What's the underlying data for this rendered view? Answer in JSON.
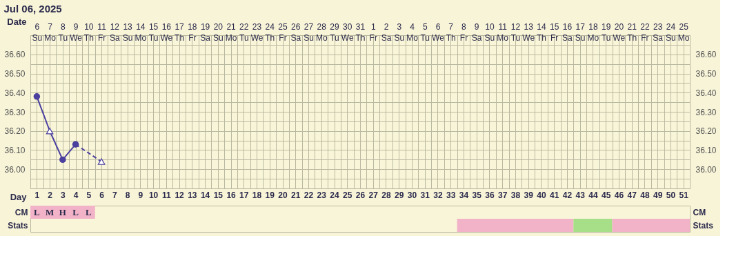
{
  "chart_data": [
    {
      "type": "line",
      "title": "Jul 06, 2025",
      "xlabel": "Day",
      "x2label": "Date",
      "xlim": [
        0.5,
        51.5
      ],
      "xticks": [
        1,
        2,
        3,
        4,
        5,
        6,
        7,
        8,
        9,
        10,
        11,
        12,
        13,
        14,
        15,
        16,
        17,
        18,
        19,
        20,
        21,
        22,
        23,
        24,
        25,
        26,
        27,
        28,
        29,
        30,
        31,
        32,
        33,
        34,
        35,
        36,
        37,
        38,
        39,
        40,
        41,
        42,
        43,
        44,
        45,
        46,
        47,
        48,
        49,
        50,
        51
      ],
      "x2lim": [
        "2025-07-05T12:00",
        "2025-08-25T12:00"
      ],
      "x2ticks": [
        {
          "value": "2025-07-06",
          "label": "6\nSu"
        },
        {
          "value": "2025-07-07",
          "label": "7\nMo"
        },
        {
          "value": "2025-07-08",
          "label": "8\nTu"
        },
        {
          "value": "2025-07-09",
          "label": "9\nWe"
        },
        {
          "value": "2025-07-10",
          "label": "10\nTh"
        },
        {
          "value": "2025-07-11",
          "label": "11\nFr"
        },
        {
          "value": "2025-07-12",
          "label": "12\nSa"
        },
        {
          "value": "2025-07-13",
          "label": "13\nSu"
        },
        {
          "value": "2025-07-14",
          "label": "14\nMo"
        },
        {
          "value": "2025-07-15",
          "label": "15\nTu"
        },
        {
          "value": "2025-07-16",
          "label": "16\nWe"
        },
        {
          "value": "2025-07-17",
          "label": "17\nTh"
        },
        {
          "value": "2025-07-18",
          "label": "18\nFr"
        },
        {
          "value": "2025-07-19",
          "label": "19\nSa"
        },
        {
          "value": "2025-07-20",
          "label": "20\nSu"
        },
        {
          "value": "2025-07-21",
          "label": "21\nMo"
        },
        {
          "value": "2025-07-22",
          "label": "22\nTu"
        },
        {
          "value": "2025-07-23",
          "label": "23\nWe"
        },
        {
          "value": "2025-07-24",
          "label": "24\nTh"
        },
        {
          "value": "2025-07-25",
          "label": "25\nFr"
        },
        {
          "value": "2025-07-26",
          "label": "26\nSa"
        },
        {
          "value": "2025-07-27",
          "label": "27\nSu"
        },
        {
          "value": "2025-07-28",
          "label": "28\nMo"
        },
        {
          "value": "2025-07-29",
          "label": "29\nTu"
        },
        {
          "value": "2025-07-30",
          "label": "30\nWe"
        },
        {
          "value": "2025-07-31",
          "label": "31\nTh"
        },
        {
          "value": "2025-08-01",
          "label": "1\nFr"
        },
        {
          "value": "2025-08-02",
          "label": "2\nSa"
        },
        {
          "value": "2025-08-03",
          "label": "3\nSu"
        },
        {
          "value": "2025-08-04",
          "label": "4\nMo"
        },
        {
          "value": "2025-08-05",
          "label": "5\nTu"
        },
        {
          "value": "2025-08-06",
          "label": "6\nWe"
        },
        {
          "value": "2025-08-07",
          "label": "7\nTh"
        },
        {
          "value": "2025-08-08",
          "label": "8\nFr"
        },
        {
          "value": "2025-08-09",
          "label": "9\nSa"
        },
        {
          "value": "2025-08-10",
          "label": "10\nSu"
        },
        {
          "value": "2025-08-11",
          "label": "11\nMo"
        },
        {
          "value": "2025-08-12",
          "label": "12\nTu"
        },
        {
          "value": "2025-08-13",
          "label": "13\nWe"
        },
        {
          "value": "2025-08-14",
          "label": "14\nTh"
        },
        {
          "value": "2025-08-15",
          "label": "15\nFr"
        },
        {
          "value": "2025-08-16",
          "label": "16\nSa"
        },
        {
          "value": "2025-08-17",
          "label": "17\nSu"
        },
        {
          "value": "2025-08-18",
          "label": "18\nMo"
        },
        {
          "value": "2025-08-19",
          "label": "19\nTu"
        },
        {
          "value": "2025-08-20",
          "label": "20\nWe"
        },
        {
          "value": "2025-08-21",
          "label": "21\nTh"
        },
        {
          "value": "2025-08-22",
          "label": "22\nFr"
        },
        {
          "value": "2025-08-23",
          "label": "23\nSa"
        },
        {
          "value": "2025-08-24",
          "label": "24\nSu"
        },
        {
          "value": "2025-08-25",
          "label": "25\nMo"
        },
        {
          "value": "2025-07-05T12:00",
          "label": null
        },
        {
          "value": "2025-07-06T12:00",
          "label": null
        },
        {
          "value": "2025-07-07T12:00",
          "label": null
        },
        {
          "value": "2025-07-08T12:00",
          "label": null
        },
        {
          "value": "2025-07-09T12:00",
          "label": null
        },
        {
          "value": "2025-07-10T12:00",
          "label": null
        },
        {
          "value": "2025-07-11T12:00",
          "label": null
        },
        {
          "value": "2025-07-12T12:00",
          "label": null
        },
        {
          "value": "2025-07-13T12:00",
          "label": null
        },
        {
          "value": "2025-07-14T12:00",
          "label": null
        },
        {
          "value": "2025-07-15T12:00",
          "label": null
        },
        {
          "value": "2025-07-16T12:00",
          "label": null
        },
        {
          "value": "2025-07-17T12:00",
          "label": null
        },
        {
          "value": "2025-07-18T12:00",
          "label": null
        },
        {
          "value": "2025-07-19T12:00",
          "label": null
        },
        {
          "value": "2025-07-20T12:00",
          "label": null
        },
        {
          "value": "2025-07-21T12:00",
          "label": null
        },
        {
          "value": "2025-07-22T12:00",
          "label": null
        },
        {
          "value": "2025-07-23T12:00",
          "label": null
        },
        {
          "value": "2025-07-24T12:00",
          "label": null
        },
        {
          "value": "2025-07-25T12:00",
          "label": null
        },
        {
          "value": "2025-07-26T12:00",
          "label": null
        },
        {
          "value": "2025-07-27T12:00",
          "label": null
        },
        {
          "value": "2025-07-28T12:00",
          "label": null
        },
        {
          "value": "2025-07-29T12:00",
          "label": null
        },
        {
          "value": "2025-07-30T12:00",
          "label": null
        },
        {
          "value": "2025-07-31T12:00",
          "label": null
        },
        {
          "value": "2025-08-01T12:00",
          "label": null
        },
        {
          "value": "2025-08-02T12:00",
          "label": null
        },
        {
          "value": "2025-08-03T12:00",
          "label": null
        },
        {
          "value": "2025-08-04T12:00",
          "label": null
        },
        {
          "value": "2025-08-05T12:00",
          "label": null
        },
        {
          "value": "2025-08-06T12:00",
          "label": null
        },
        {
          "value": "2025-08-07T12:00",
          "label": null
        },
        {
          "value": "2025-08-08T12:00",
          "label": null
        },
        {
          "value": "2025-08-09T12:00",
          "label": null
        },
        {
          "value": "2025-08-10T12:00",
          "label": null
        },
        {
          "value": "2025-08-11T12:00",
          "label": null
        },
        {
          "value": "2025-08-12T12:00",
          "label": null
        },
        {
          "value": "2025-08-13T12:00",
          "label": null
        },
        {
          "value": "2025-08-14T12:00",
          "label": null
        },
        {
          "value": "2025-08-15T12:00",
          "label": null
        },
        {
          "value": "2025-08-16T12:00",
          "label": null
        },
        {
          "value": "2025-08-17T12:00",
          "label": null
        },
        {
          "value": "2025-08-18T12:00",
          "label": null
        },
        {
          "value": "2025-08-19T12:00",
          "label": null
        },
        {
          "value": "2025-08-20T12:00",
          "label": null
        },
        {
          "value": "2025-08-21T12:00",
          "label": null
        },
        {
          "value": "2025-08-22T12:00",
          "label": null
        },
        {
          "value": "2025-08-23T12:00",
          "label": null
        },
        {
          "value": "2025-08-24T12:00",
          "label": null
        },
        {
          "value": "2025-08-25T12:00",
          "label": null
        }
      ],
      "ylim": [
        35.9,
        36.7
      ],
      "yticks": [
        {
          "value": 35.9,
          "label": null
        },
        {
          "value": 35.95,
          "label": null
        },
        {
          "value": 36.0,
          "label": "36.00"
        },
        {
          "value": 36.05,
          "label": null
        },
        {
          "value": 36.1,
          "label": "36.10"
        },
        {
          "value": 36.15,
          "label": null
        },
        {
          "value": 36.2,
          "label": "36.20"
        },
        {
          "value": 36.25,
          "label": null
        },
        {
          "value": 36.3,
          "label": "36.30"
        },
        {
          "value": 36.35,
          "label": null
        },
        {
          "value": 36.4,
          "label": "36.40"
        },
        {
          "value": 36.45,
          "label": null
        },
        {
          "value": 36.5,
          "label": "36.50"
        },
        {
          "value": 36.55,
          "label": null
        },
        {
          "value": 36.6,
          "label": "36.60"
        },
        {
          "value": 36.65,
          "label": null
        },
        {
          "value": 36.7,
          "label": null
        }
      ],
      "y2lim": [
        35.9,
        36.7
      ],
      "y2ticks": [
        {
          "value": 36.0,
          "label": "36.00"
        },
        {
          "value": 36.1,
          "label": "36.10"
        },
        {
          "value": 36.2,
          "label": "36.20"
        },
        {
          "value": 36.3,
          "label": "36.30"
        },
        {
          "value": 36.4,
          "label": "36.40"
        },
        {
          "value": 36.5,
          "label": "36.50"
        },
        {
          "value": 36.6,
          "label": "36.60"
        }
      ],
      "grid": true,
      "series": [
        {
          "type": "line",
          "color": "#4a3f9e",
          "x": [
            1,
            2,
            3,
            4
          ],
          "values": [
            36.38,
            36.2,
            36.05,
            36.13
          ],
          "line_style": "solid",
          "marker": "none"
        },
        {
          "type": "line",
          "color": "#4a3f9e",
          "x": [
            4,
            6
          ],
          "values": [
            36.13,
            36.04
          ],
          "line_style": "dashed",
          "marker": "none"
        },
        {
          "type": "scatter",
          "color": "#4a3f9e",
          "x": [
            1,
            3,
            4
          ],
          "values": [
            36.38,
            36.05,
            36.13
          ],
          "marker": "circle"
        },
        {
          "type": "scatter",
          "color": "#4a3f9e",
          "x": [
            2,
            6
          ],
          "values": [
            36.2,
            36.04
          ],
          "marker": "triangle"
        }
      ],
      "tick_labels": "xy"
    },
    {
      "type": "bar",
      "orientation": "horizontal",
      "categories": [
        "CM",
        "Stats"
      ],
      "xlim": [
        0.5,
        51.5
      ],
      "tick_labels": "y",
      "grid": "x",
      "series": [
        {
          "color": "#f2b3c8",
          "values": [
            5,
            null
          ],
          "base": [
            0.5,
            null
          ]
        },
        {
          "color": "#f2b3c8",
          "values": [
            null,
            9
          ],
          "base": [
            null,
            33.5
          ]
        },
        {
          "color": "#a6df88",
          "values": [
            null,
            3
          ],
          "base": [
            null,
            42.5
          ]
        },
        {
          "color": "#f2b3c8",
          "values": [
            null,
            6
          ],
          "base": [
            null,
            45.5
          ]
        }
      ],
      "annotations": [
        {
          "text": "L",
          "x": 1,
          "y": "CM"
        },
        {
          "text": "M",
          "x": 2,
          "y": "CM"
        },
        {
          "text": "H",
          "x": 3,
          "y": "CM"
        },
        {
          "text": "L",
          "x": 4,
          "y": "CM"
        },
        {
          "text": "L",
          "x": 5,
          "y": "CM"
        }
      ]
    }
  ]
}
